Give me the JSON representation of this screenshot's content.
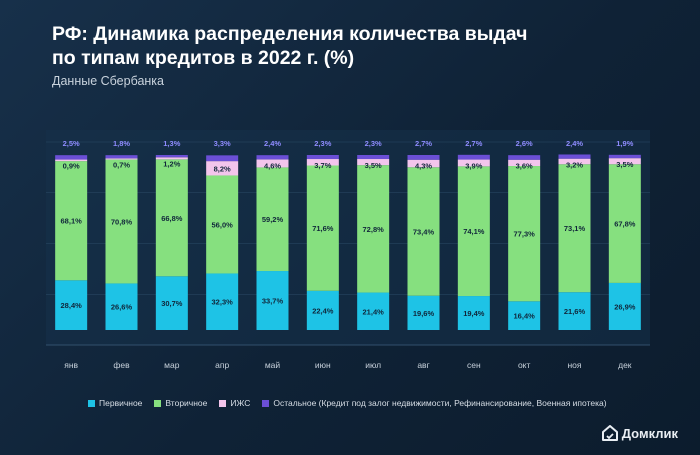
{
  "header": {
    "title_line1": "РФ: Динамика распределения количества выдач",
    "title_line2": "по типам кредитов в 2022 г. (%)",
    "subtitle": "Данные Сбербанка"
  },
  "brand": {
    "logo_text": "Домклик"
  },
  "colors": {
    "primary": "#1ec3e6",
    "secondary": "#86e07f",
    "izhs": "#f3c5ec",
    "other": "#6b4fd6"
  },
  "chart_data": {
    "type": "bar",
    "stacked": true,
    "categories": [
      "янв",
      "фев",
      "мар",
      "апр",
      "май",
      "июн",
      "июл",
      "авг",
      "сен",
      "окт",
      "ноя",
      "дек"
    ],
    "series": [
      {
        "name": "Первичное",
        "values": [
          28.4,
          26.6,
          30.7,
          32.3,
          33.7,
          22.4,
          21.4,
          19.6,
          19.4,
          16.4,
          21.6,
          26.9
        ],
        "labels": [
          "28,4%",
          "26,6%",
          "30,7%",
          "32,3%",
          "33,7%",
          "22,4%",
          "21,4%",
          "19,6%",
          "19,4%",
          "16,4%",
          "21,6%",
          "26,9%"
        ]
      },
      {
        "name": "Вторичное",
        "values": [
          68.1,
          70.8,
          66.8,
          56.0,
          59.2,
          71.6,
          72.8,
          73.4,
          74.1,
          77.3,
          73.1,
          67.8
        ],
        "labels": [
          "68,1%",
          "70,8%",
          "66,8%",
          "56,0%",
          "59,2%",
          "71,6%",
          "72,8%",
          "73,4%",
          "74,1%",
          "77,3%",
          "73,1%",
          "67,8%"
        ]
      },
      {
        "name": "ИЖС",
        "values": [
          0.9,
          0.7,
          1.2,
          8.2,
          4.6,
          3.7,
          3.5,
          4.3,
          3.9,
          3.6,
          3.2,
          3.5
        ],
        "labels": [
          "0,9%",
          "0,7%",
          "1,2%",
          "8,2%",
          "4,6%",
          "3,7%",
          "3,5%",
          "4,3%",
          "3,9%",
          "3,6%",
          "3,2%",
          "3,5%"
        ]
      },
      {
        "name": "Остальное (Кредит под залог недвижимости, Рефинансирование, Военная ипотека)",
        "values": [
          2.5,
          1.8,
          1.3,
          3.3,
          2.4,
          2.3,
          2.3,
          2.7,
          2.7,
          2.6,
          2.4,
          1.9
        ],
        "labels": [
          "2,5%",
          "1,8%",
          "1,3%",
          "3,3%",
          "2,4%",
          "2,3%",
          "2,3%",
          "2,7%",
          "2,7%",
          "2,6%",
          "2,4%",
          "1,9%"
        ]
      }
    ],
    "ylim": [
      0,
      100
    ],
    "grid": true,
    "legend_position": "bottom"
  }
}
